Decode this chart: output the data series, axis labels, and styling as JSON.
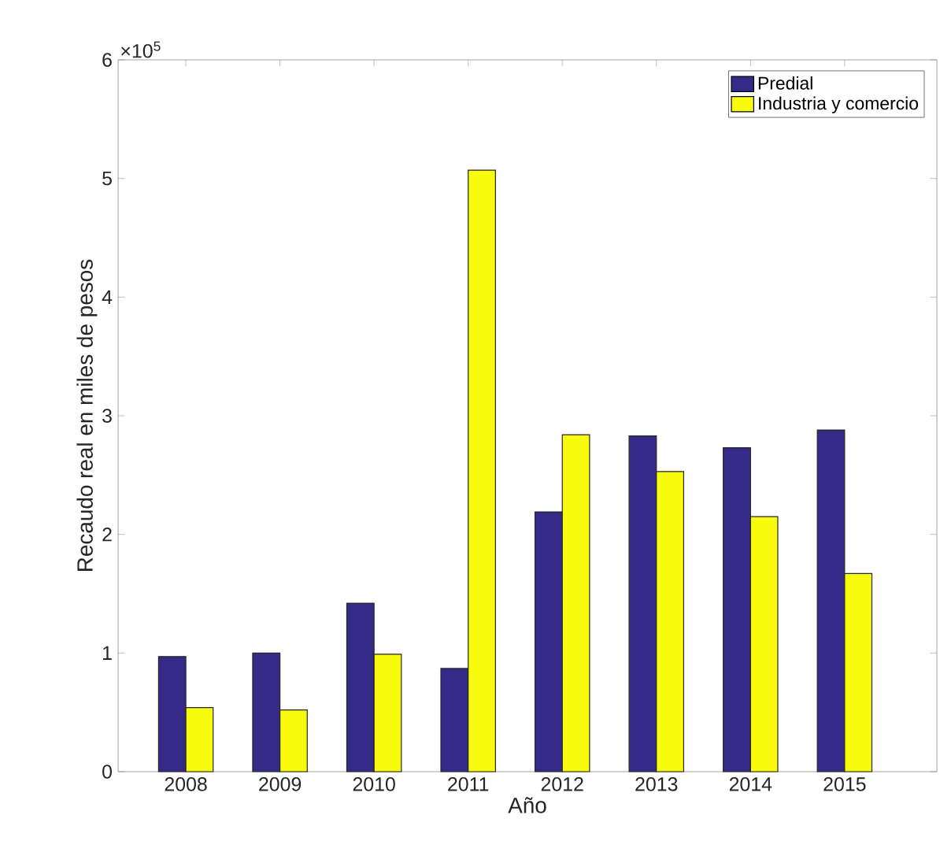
{
  "chart_data": {
    "type": "bar",
    "xlabel": "Año",
    "ylabel": "Recaudo real en miles de pesos",
    "annotations": [
      "×10$^{5}$"
    ],
    "categories": [
      "2008",
      "2009",
      "2010",
      "2011",
      "2012",
      "2013",
      "2014",
      "2015"
    ],
    "series": [
      {
        "name": "Predial",
        "color": "#352a87",
        "values": [
          0.97,
          1.0,
          1.42,
          0.87,
          2.19,
          2.83,
          2.73,
          2.88
        ]
      },
      {
        "name": "Industria y comercio",
        "color": "#f9fb0e",
        "values": [
          0.54,
          0.52,
          0.99,
          5.07,
          2.84,
          2.53,
          2.15,
          1.67
        ]
      }
    ],
    "ylim": [
      0,
      6
    ],
    "yticks": [
      0,
      1,
      2,
      3,
      4,
      5,
      6
    ],
    "grid": false,
    "legend": "top right"
  }
}
